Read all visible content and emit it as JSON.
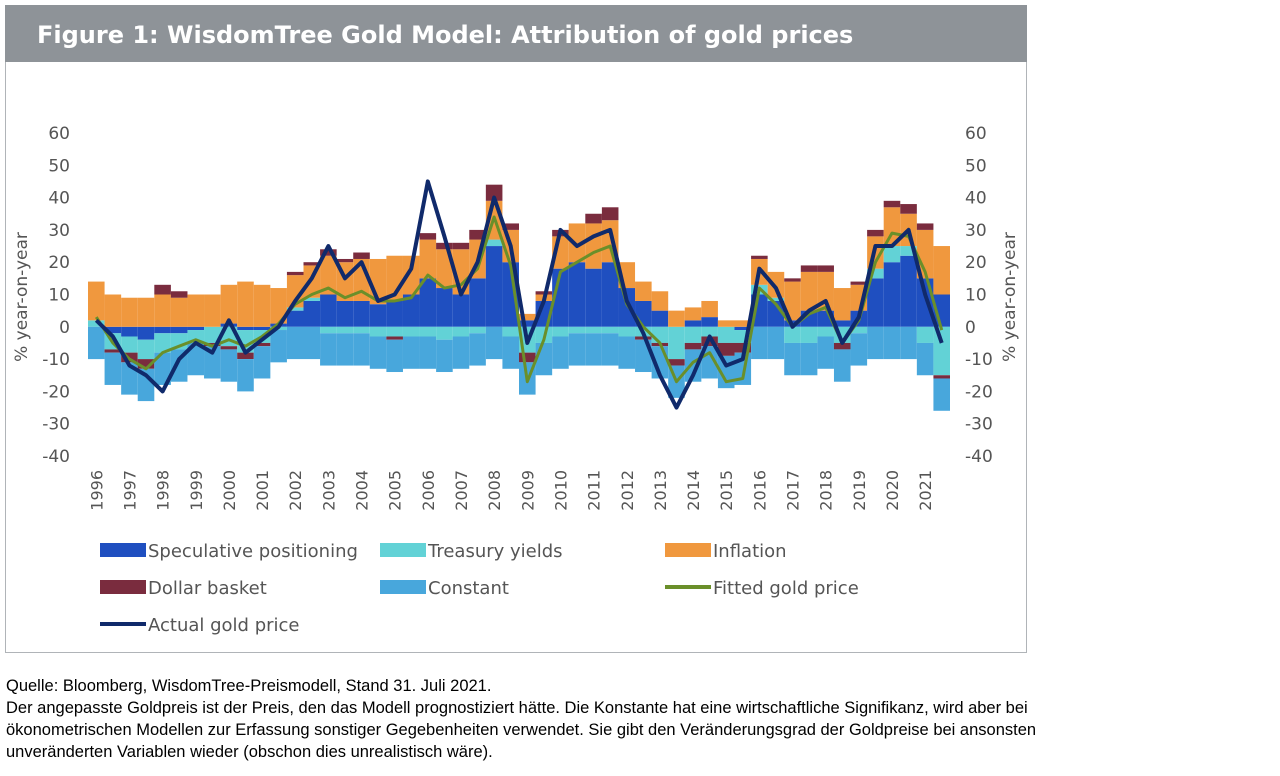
{
  "chart_data": {
    "type": "stacked-bar-line",
    "title": "Figure 1: WisdomTree Gold Model: Attribution of gold prices",
    "ylabel": "% year-on-year",
    "y2label": "% year-on-year",
    "x": [
      1996,
      1996.5,
      1997,
      1997.5,
      1998,
      1998.5,
      1999,
      1999.5,
      2000,
      2000.5,
      2001,
      2001.5,
      2002,
      2002.5,
      2003,
      2003.5,
      2004,
      2004.5,
      2005,
      2005.5,
      2006,
      2006.5,
      2007,
      2007.5,
      2008,
      2008.5,
      2009,
      2009.5,
      2010,
      2010.5,
      2011,
      2011.5,
      2012,
      2012.5,
      2013,
      2013.5,
      2014,
      2014.5,
      2015,
      2015.5,
      2016,
      2016.5,
      2017,
      2017.5,
      2018,
      2018.5,
      2019,
      2019.5,
      2020,
      2020.5,
      2021,
      2021.5
    ],
    "xlim": [
      1995.75,
      2021.75
    ],
    "xticks": [
      1996,
      1997,
      1998,
      1999,
      2000,
      2001,
      2002,
      2003,
      2004,
      2005,
      2006,
      2007,
      2008,
      2009,
      2010,
      2011,
      2012,
      2013,
      2014,
      2015,
      2016,
      2017,
      2018,
      2019,
      2020,
      2021
    ],
    "ylim": [
      -40,
      60
    ],
    "yticks": [
      -40,
      -30,
      -20,
      -10,
      0,
      10,
      20,
      30,
      40,
      50,
      60
    ],
    "y2lim": [
      -40,
      60
    ],
    "y2ticks": [
      -40,
      -30,
      -20,
      -10,
      0,
      10,
      20,
      30,
      40,
      50,
      60
    ],
    "series": [
      {
        "name": "Speculative positioning",
        "kind": "bar",
        "color": "#1f4fc0",
        "values": [
          0,
          -2,
          -3,
          -4,
          -2,
          -2,
          -1,
          0,
          1,
          -1,
          -1,
          1,
          5,
          8,
          10,
          8,
          8,
          7,
          8,
          10,
          15,
          12,
          10,
          15,
          25,
          20,
          2,
          8,
          18,
          20,
          18,
          20,
          12,
          8,
          5,
          0,
          2,
          3,
          0,
          -1,
          10,
          8,
          2,
          5,
          5,
          2,
          5,
          15,
          20,
          22,
          15,
          10
        ]
      },
      {
        "name": "Treasury yields",
        "kind": "bar",
        "color": "#62d2d6",
        "values": [
          2,
          -5,
          -5,
          -6,
          -6,
          -5,
          -4,
          -5,
          -6,
          -7,
          -4,
          -1,
          1,
          1,
          -2,
          -2,
          -2,
          -3,
          -3,
          -3,
          -3,
          -4,
          -3,
          -2,
          2,
          -3,
          -8,
          -5,
          -3,
          -2,
          -2,
          -2,
          -3,
          -3,
          -5,
          -10,
          -5,
          -3,
          -5,
          -4,
          3,
          1,
          -5,
          -5,
          -3,
          -5,
          -2,
          3,
          5,
          3,
          -5,
          -15
        ]
      },
      {
        "name": "Inflation",
        "kind": "bar",
        "color": "#f0983e",
        "values": [
          12,
          10,
          9,
          9,
          10,
          9,
          10,
          10,
          12,
          14,
          13,
          11,
          10,
          10,
          12,
          12,
          13,
          14,
          14,
          12,
          12,
          12,
          14,
          12,
          12,
          10,
          2,
          2,
          10,
          12,
          14,
          13,
          8,
          6,
          6,
          5,
          4,
          5,
          2,
          2,
          8,
          8,
          12,
          12,
          12,
          10,
          8,
          10,
          12,
          10,
          15,
          15
        ]
      },
      {
        "name": "Dollar basket",
        "kind": "bar",
        "color": "#7a2c3e",
        "values": [
          0,
          -1,
          -3,
          -3,
          3,
          2,
          0,
          -1,
          -1,
          -2,
          -1,
          0,
          1,
          1,
          2,
          1,
          2,
          0,
          -1,
          0,
          2,
          2,
          2,
          3,
          5,
          2,
          -3,
          1,
          2,
          0,
          3,
          4,
          0,
          -1,
          -1,
          -2,
          -2,
          -3,
          -4,
          -3,
          1,
          0,
          1,
          2,
          2,
          -2,
          1,
          2,
          2,
          3,
          2,
          -1
        ]
      },
      {
        "name": "Constant",
        "kind": "bar",
        "color": "#48a7dc",
        "values": [
          -10,
          -10,
          -10,
          -10,
          -10,
          -10,
          -10,
          -10,
          -10,
          -10,
          -10,
          -10,
          -10,
          -10,
          -10,
          -10,
          -10,
          -10,
          -10,
          -10,
          -10,
          -10,
          -10,
          -10,
          -10,
          -10,
          -10,
          -10,
          -10,
          -10,
          -10,
          -10,
          -10,
          -10,
          -10,
          -10,
          -10,
          -10,
          -10,
          -10,
          -10,
          -10,
          -10,
          -10,
          -10,
          -10,
          -10,
          -10,
          -10,
          -10,
          -10,
          -10
        ]
      },
      {
        "name": "Fitted gold price",
        "kind": "line",
        "color": "#6a8f2a",
        "values": [
          3,
          -5,
          -10,
          -13,
          -8,
          -6,
          -4,
          -6,
          -4,
          -6,
          -3,
          1,
          7,
          10,
          12,
          9,
          11,
          8,
          8,
          9,
          16,
          12,
          13,
          18,
          34,
          19,
          -17,
          -4,
          17,
          20,
          23,
          25,
          7,
          0,
          -5,
          -17,
          -11,
          -8,
          -17,
          -16,
          12,
          7,
          0,
          4,
          6,
          -5,
          2,
          20,
          29,
          28,
          17,
          -1
        ]
      },
      {
        "name": "Actual gold price",
        "kind": "line",
        "color": "#102a6b",
        "values": [
          2,
          -3,
          -12,
          -15,
          -20,
          -10,
          -5,
          -8,
          2,
          -8,
          -4,
          0,
          8,
          15,
          25,
          15,
          20,
          8,
          10,
          18,
          45,
          28,
          10,
          20,
          40,
          25,
          -5,
          8,
          30,
          25,
          28,
          30,
          8,
          -2,
          -15,
          -25,
          -15,
          -3,
          -12,
          -10,
          18,
          12,
          0,
          5,
          8,
          -5,
          3,
          25,
          25,
          30,
          10,
          -5
        ]
      }
    ]
  },
  "notes": [
    "Quelle: Bloomberg, WisdomTree-Preismodell, Stand 31. Juli 2021.",
    "Der angepasste Goldpreis ist der Preis, den das Modell prognostiziert hätte. Die Konstante hat eine wirtschaftliche Signifikanz, wird aber bei",
    "ökonometrischen Modellen zur Erfassung sonstiger Gegebenheiten verwendet. Sie gibt den Veränderungsgrad der Goldpreise bei ansonsten",
    "unveränderten Variablen wieder (obschon dies unrealistisch wäre)."
  ]
}
